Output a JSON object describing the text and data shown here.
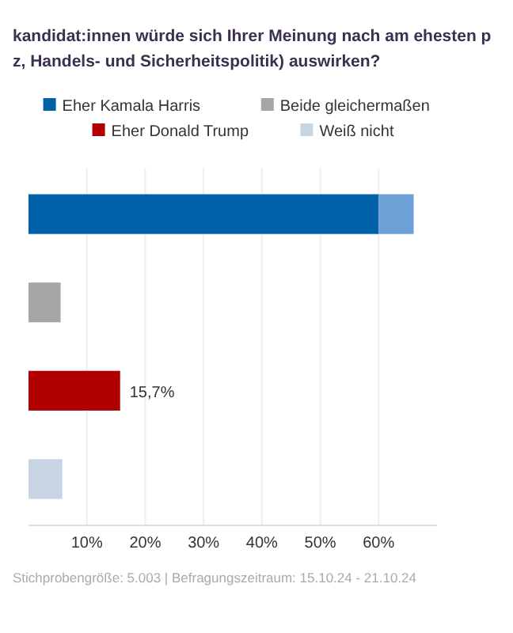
{
  "chart_data": {
    "type": "bar",
    "orientation": "horizontal",
    "stacked": true,
    "title": "kandidat:innen würde sich Ihrer Meinung nach am ehesten p\nz, Handels- und Sicherheitspolitik) auswirken?",
    "categories": [
      null,
      null,
      null,
      null
    ],
    "series": [
      {
        "name": "Eher Kamala Harris",
        "color": "#0060a8",
        "values": [
          60,
          null,
          null,
          null
        ]
      },
      {
        "name": "Beide gleichermaßen",
        "color": "#a6a6a6",
        "values": [
          null,
          5.5,
          null,
          null
        ]
      },
      {
        "name": "Eher Donald Trump",
        "color": "#b00000",
        "values": [
          null,
          null,
          15.7,
          null
        ],
        "value_labels": [
          null,
          null,
          "15,7%",
          null
        ]
      },
      {
        "name": "Weiß nicht",
        "color": "#c8d4e3",
        "values": [
          null,
          null,
          null,
          5.8
        ]
      },
      {
        "color": "#6ea0d8",
        "values": [
          6,
          null,
          null,
          null
        ]
      }
    ],
    "xlim": [
      0,
      70
    ],
    "xticks": [
      {
        "value": 10,
        "label": "10%"
      },
      {
        "value": 20,
        "label": "20%"
      },
      {
        "value": 30,
        "label": "30%"
      },
      {
        "value": 40,
        "label": "40%"
      },
      {
        "value": 50,
        "label": "50%"
      },
      {
        "value": 60,
        "label": "60%"
      }
    ],
    "grid": "x",
    "legend": "top",
    "annotations": [
      "Stichprobengröße: 5.003 | Befragungszeitraum: 15.10.24 - 21.10.24"
    ]
  }
}
